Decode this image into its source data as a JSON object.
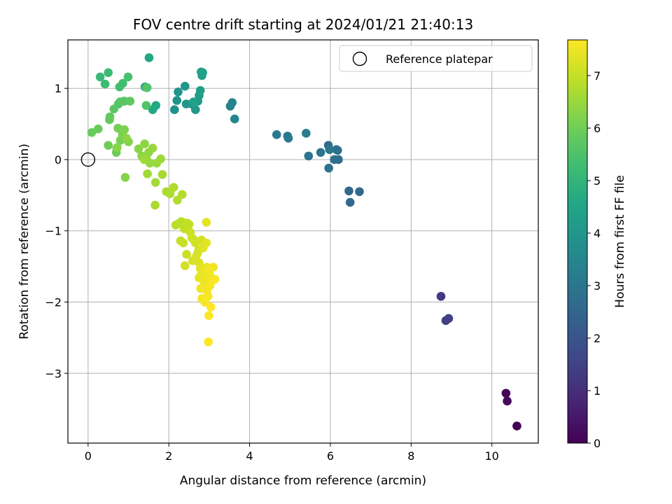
{
  "chart_data": {
    "type": "scatter",
    "title": "FOV centre drift starting at 2024/01/21 21:40:13",
    "xlabel": "Angular distance from reference (arcmin)",
    "ylabel": "Rotation from reference (arcmin)",
    "xlim": [
      -0.5,
      11.15
    ],
    "ylim": [
      -3.98,
      1.68
    ],
    "xticks": [
      0,
      2,
      4,
      6,
      8,
      10
    ],
    "xtick_labels": [
      "0",
      "2",
      "4",
      "6",
      "8",
      "10"
    ],
    "yticks": [
      -3,
      -2,
      -1,
      0,
      1
    ],
    "ytick_labels": [
      "−3",
      "−2",
      "−1",
      "0",
      "1"
    ],
    "grid": true,
    "legend": {
      "position": "top-right",
      "entries": [
        "Reference platepar"
      ]
    },
    "reference_point": {
      "x": 0,
      "y": 0,
      "label": "Reference platepar"
    },
    "colorbar": {
      "label": "Hours from first FF file",
      "colormap": "viridis",
      "range": [
        0,
        7.68
      ],
      "ticks": [
        0,
        1,
        2,
        3,
        4,
        5,
        6,
        7
      ],
      "tick_labels": [
        "0",
        "1",
        "2",
        "3",
        "4",
        "5",
        "6",
        "7"
      ]
    },
    "series": [
      {
        "x": [
          10.62,
          10.35,
          10.38,
          8.74,
          8.86,
          8.93,
          6.46,
          6.72,
          6.49,
          5.95,
          6.15,
          6.2,
          6.1,
          6.18,
          5.96,
          5.76,
          5.46,
          5.98,
          4.67,
          4.96,
          4.94,
          5.4,
          3.52,
          3.57,
          3.63,
          2.14,
          2.2,
          2.23,
          2.4,
          2.56,
          2.43,
          2.66,
          2.72,
          2.75,
          2.78,
          2.82,
          2.8,
          2.84,
          2.61,
          1.41,
          1.46,
          1.51,
          1.6,
          1.68,
          0.3,
          0.5,
          0.42,
          0.78,
          0.86,
          0.99,
          0.75,
          0.9,
          1.44,
          1.45,
          0.79,
          0.89,
          0.64,
          0.54,
          1.04,
          0.53,
          0.09,
          0.25,
          0.5,
          0.7,
          0.71,
          0.74,
          0.8,
          0.85,
          0.9,
          1.0,
          0.92,
          0.72,
          0.95,
          1.25,
          1.33,
          1.4,
          1.45,
          1.5,
          1.53,
          1.6,
          1.7,
          1.8,
          1.39,
          1.47,
          1.67,
          1.84,
          1.94,
          2.03,
          2.12,
          2.21,
          2.33,
          1.66,
          2.17,
          2.24,
          2.31,
          2.38,
          2.45,
          2.5,
          2.29,
          2.36,
          2.44,
          2.53,
          2.61,
          2.74,
          2.81,
          2.57,
          2.66,
          2.71,
          2.4,
          2.59,
          2.67,
          2.75,
          2.85,
          2.93,
          2.93,
          2.78,
          2.82,
          2.88,
          2.94,
          3.01,
          3.08,
          3.1,
          2.75,
          2.81,
          2.88,
          2.95,
          3.0,
          3.05,
          3.14,
          2.79,
          2.86,
          2.94,
          3.02,
          2.82,
          2.89,
          2.97,
          3.04,
          2.99,
          2.98
        ],
        "y": [
          -3.74,
          -3.28,
          -3.39,
          -1.92,
          -2.26,
          -2.23,
          -0.44,
          -0.45,
          -0.6,
          0.2,
          0.14,
          0.0,
          0.0,
          0.13,
          -0.12,
          0.1,
          0.05,
          0.14,
          0.35,
          0.3,
          0.33,
          0.37,
          0.75,
          0.8,
          0.57,
          0.7,
          0.83,
          0.95,
          1.03,
          0.78,
          0.78,
          0.7,
          0.82,
          0.9,
          0.97,
          1.18,
          1.23,
          1.22,
          0.81,
          1.02,
          1.01,
          1.43,
          0.7,
          0.76,
          1.16,
          1.22,
          1.06,
          1.02,
          1.07,
          1.16,
          0.78,
          0.82,
          0.76,
          1.01,
          0.81,
          0.82,
          0.71,
          0.6,
          0.82,
          0.56,
          0.38,
          0.43,
          0.2,
          0.1,
          0.16,
          0.44,
          0.27,
          0.35,
          0.42,
          0.25,
          -0.25,
          0.17,
          0.3,
          0.15,
          0.05,
          0.22,
          0.0,
          0.1,
          -0.05,
          0.16,
          -0.05,
          0.01,
          0.0,
          -0.2,
          -0.32,
          -0.21,
          -0.45,
          -0.48,
          -0.39,
          -0.57,
          -0.49,
          -0.64,
          -0.92,
          -0.9,
          -0.87,
          -0.97,
          -0.89,
          -0.91,
          -1.14,
          -1.17,
          -1.33,
          -1.02,
          -1.12,
          -1.27,
          -1.13,
          -1.1,
          -1.17,
          -1.32,
          -1.49,
          -1.42,
          -1.37,
          -1.45,
          -1.24,
          -1.17,
          -0.88,
          -1.53,
          -1.62,
          -1.7,
          -1.51,
          -1.62,
          -1.68,
          -1.51,
          -1.66,
          -1.6,
          -1.71,
          -1.63,
          -1.56,
          -1.71,
          -1.68,
          -1.81,
          -1.78,
          -1.84,
          -1.77,
          -1.95,
          -2.0,
          -1.92,
          -2.07,
          -2.19,
          -2.56
        ],
        "hours": [
          0.0,
          0.08,
          0.15,
          1.3,
          1.38,
          1.46,
          2.56,
          2.6,
          2.64,
          2.68,
          2.72,
          2.76,
          2.8,
          2.84,
          2.88,
          2.92,
          2.96,
          3.0,
          3.06,
          3.1,
          3.14,
          3.18,
          3.4,
          3.46,
          3.52,
          3.88,
          3.92,
          3.96,
          4.0,
          4.04,
          4.08,
          4.12,
          4.16,
          4.2,
          4.24,
          4.28,
          4.32,
          4.36,
          4.4,
          4.48,
          4.52,
          4.56,
          4.6,
          4.64,
          5.15,
          5.2,
          5.25,
          5.3,
          5.35,
          5.4,
          5.45,
          5.5,
          5.56,
          5.6,
          5.62,
          5.66,
          5.7,
          5.74,
          5.78,
          5.82,
          5.86,
          5.9,
          5.94,
          5.98,
          6.02,
          6.06,
          6.1,
          6.14,
          6.18,
          6.22,
          6.26,
          6.3,
          6.34,
          6.3,
          6.33,
          6.36,
          6.39,
          6.42,
          6.45,
          6.48,
          6.51,
          6.54,
          6.57,
          6.6,
          6.63,
          6.66,
          6.69,
          6.72,
          6.75,
          6.78,
          6.81,
          6.7,
          6.84,
          6.87,
          6.9,
          6.93,
          6.96,
          6.99,
          7.0,
          7.02,
          7.05,
          7.08,
          7.11,
          7.14,
          7.17,
          7.1,
          7.15,
          7.2,
          7.14,
          7.2,
          7.24,
          7.28,
          7.32,
          7.36,
          7.4,
          7.35,
          7.38,
          7.41,
          7.44,
          7.47,
          7.5,
          7.53,
          7.4,
          7.44,
          7.48,
          7.52,
          7.56,
          7.6,
          7.64,
          7.5,
          7.54,
          7.58,
          7.62,
          7.55,
          7.58,
          7.62,
          7.66,
          7.66,
          7.68
        ]
      }
    ]
  }
}
